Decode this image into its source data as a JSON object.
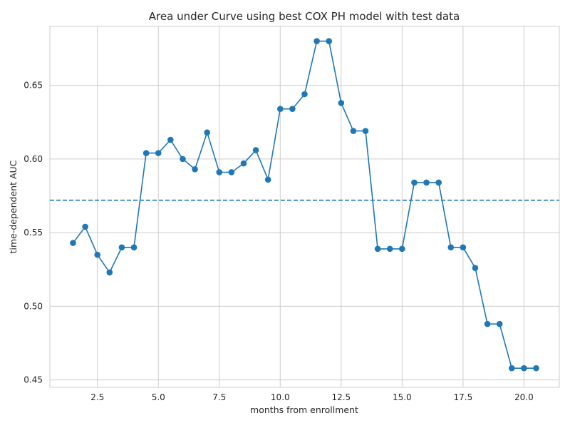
{
  "chart_data": {
    "type": "line",
    "title": "Area under Curve using best COX PH model with test data",
    "xlabel": "months from enrollment",
    "ylabel": "time-dependent AUC",
    "xlim": [
      0.55,
      21.45
    ],
    "ylim": [
      0.445,
      0.69
    ],
    "xticks": [
      2.5,
      5.0,
      7.5,
      10.0,
      12.5,
      15.0,
      17.5,
      20.0
    ],
    "xtick_labels": [
      "2.5",
      "5.0",
      "7.5",
      "10.0",
      "12.5",
      "15.0",
      "17.5",
      "20.0"
    ],
    "yticks": [
      0.45,
      0.5,
      0.55,
      0.6,
      0.65
    ],
    "ytick_labels": [
      "0.45",
      "0.50",
      "0.55",
      "0.60",
      "0.65"
    ],
    "grid": true,
    "series": [
      {
        "color": "#1f77b4",
        "marker": "circle",
        "x": [
          1.5,
          2.0,
          2.5,
          3.0,
          3.5,
          4.0,
          4.5,
          5.0,
          5.5,
          6.0,
          6.5,
          7.0,
          7.5,
          8.0,
          8.5,
          9.0,
          9.5,
          10.0,
          10.5,
          11.0,
          11.5,
          12.0,
          12.5,
          13.0,
          13.5,
          14.0,
          14.5,
          15.0,
          15.5,
          16.0,
          16.5,
          17.0,
          17.5,
          18.0,
          18.5,
          19.0,
          19.5,
          20.0,
          20.5
        ],
        "values": [
          0.543,
          0.554,
          0.535,
          0.523,
          0.54,
          0.54,
          0.604,
          0.604,
          0.613,
          0.6,
          0.593,
          0.618,
          0.591,
          0.591,
          0.597,
          0.606,
          0.586,
          0.634,
          0.634,
          0.644,
          0.68,
          0.68,
          0.638,
          0.619,
          0.619,
          0.539,
          0.539,
          0.539,
          0.584,
          0.584,
          0.584,
          0.54,
          0.54,
          0.526,
          0.488,
          0.488,
          0.458,
          0.458,
          0.458
        ]
      }
    ],
    "reference_line": {
      "y": 0.572,
      "style": "dashed",
      "color": "#1f77b4"
    }
  }
}
